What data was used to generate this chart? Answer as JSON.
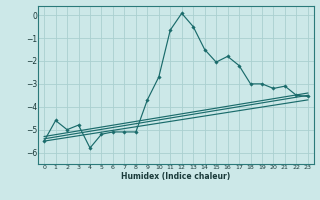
{
  "xlabel": "Humidex (Indice chaleur)",
  "bg_color": "#cce8e8",
  "grid_color": "#aad0d0",
  "line_color": "#1a6b6b",
  "xlim": [
    -0.5,
    23.5
  ],
  "ylim": [
    -6.5,
    0.4
  ],
  "yticks": [
    0,
    -1,
    -2,
    -3,
    -4,
    -5,
    -6
  ],
  "xticks": [
    0,
    1,
    2,
    3,
    4,
    5,
    6,
    7,
    8,
    9,
    10,
    11,
    12,
    13,
    14,
    15,
    16,
    17,
    18,
    19,
    20,
    21,
    22,
    23
  ],
  "main_line_x": [
    0,
    1,
    2,
    3,
    4,
    5,
    6,
    7,
    8,
    9,
    10,
    11,
    12,
    13,
    14,
    15,
    16,
    17,
    18,
    19,
    20,
    21,
    22,
    23
  ],
  "main_line_y": [
    -5.5,
    -4.6,
    -5.0,
    -4.8,
    -5.8,
    -5.2,
    -5.1,
    -5.1,
    -5.1,
    -3.7,
    -2.7,
    -0.65,
    0.08,
    -0.5,
    -1.5,
    -2.05,
    -1.8,
    -2.2,
    -3.0,
    -3.0,
    -3.2,
    -3.1,
    -3.5,
    -3.55
  ],
  "line2_x": [
    0,
    23
  ],
  "line2_y": [
    -5.3,
    -3.4
  ],
  "line3_x": [
    0,
    23
  ],
  "line3_y": [
    -5.4,
    -3.5
  ],
  "line4_x": [
    0,
    23
  ],
  "line4_y": [
    -5.5,
    -3.7
  ]
}
